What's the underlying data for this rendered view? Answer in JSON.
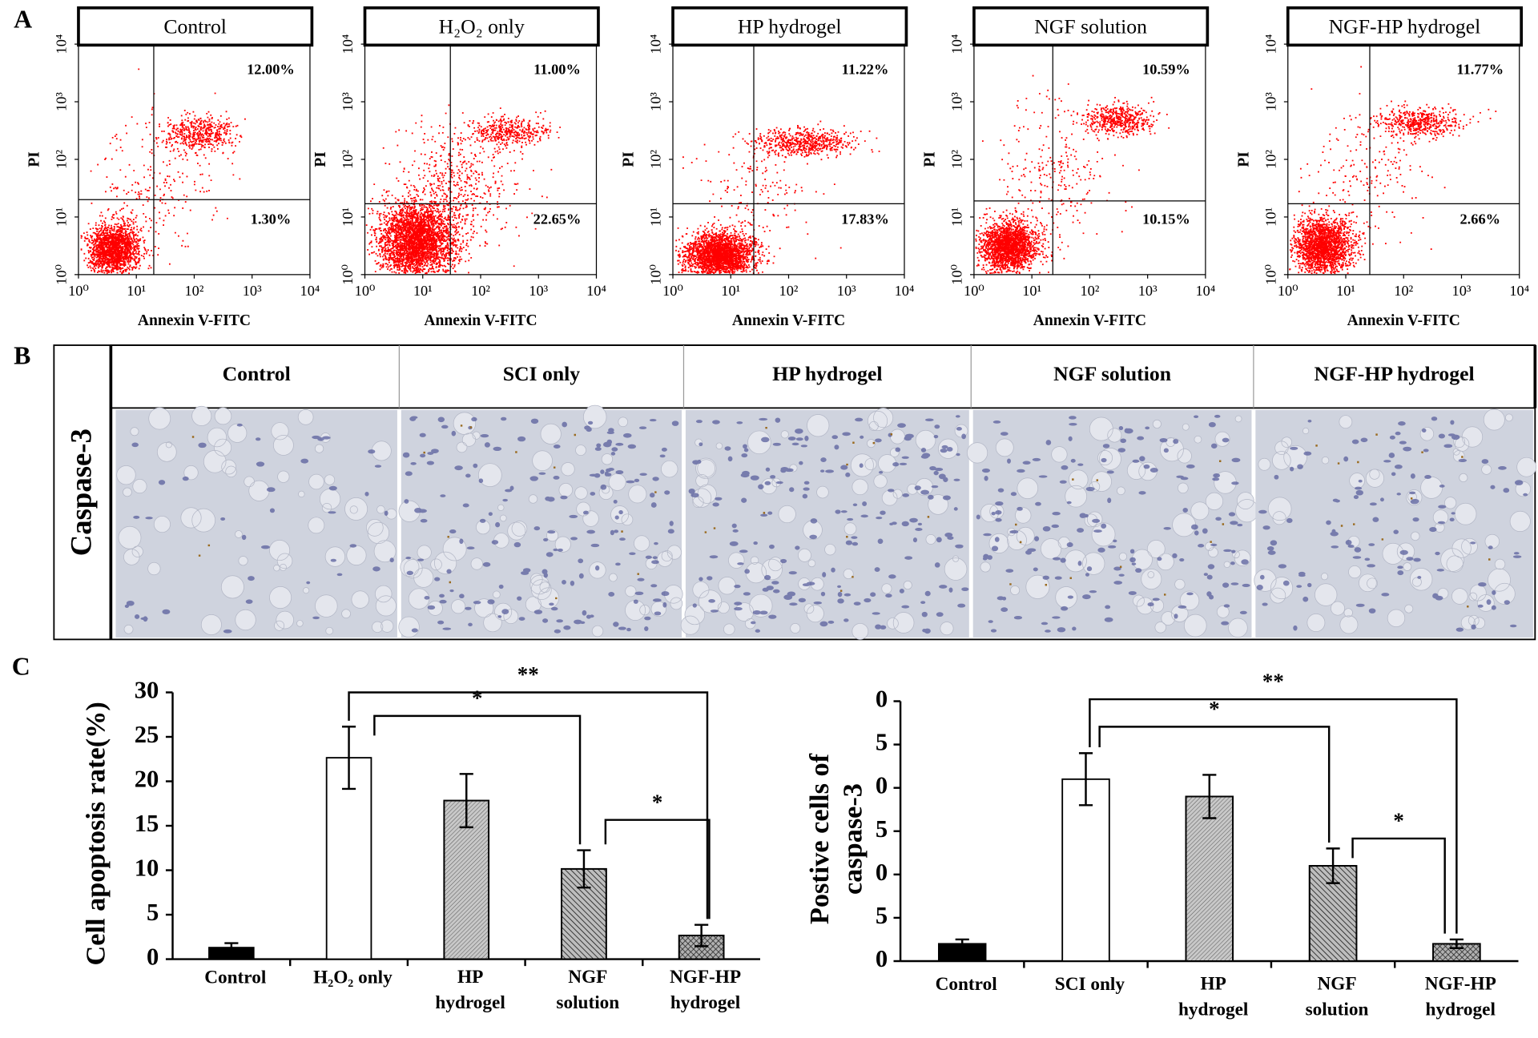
{
  "panel_labels": [
    "A",
    "B",
    "C"
  ],
  "chart_data": [
    {
      "type": "scatter",
      "title": "Control",
      "xlabel": "Annexin V-FITC",
      "ylabel": "PI",
      "log_scale": true,
      "color": "#ff0000",
      "xlim": [
        1,
        10000
      ],
      "ylim": [
        1,
        10000
      ],
      "xticks": [
        {
          "value": 1,
          "label": "10⁰"
        },
        {
          "value": 10,
          "label": "10¹"
        },
        {
          "value": 100,
          "label": "10²"
        },
        {
          "value": 1000,
          "label": "10³"
        },
        {
          "value": 10000,
          "label": "10⁴"
        }
      ],
      "yticks": [
        {
          "value": 1,
          "label": "10⁰"
        },
        {
          "value": 10,
          "label": "10¹"
        },
        {
          "value": 100,
          "label": "10²"
        },
        {
          "value": 1000,
          "label": "10³"
        },
        {
          "value": 10000,
          "label": "10⁴"
        }
      ],
      "gates": {
        "x": 20,
        "y": 20
      },
      "values": [
        12.0,
        1.3
      ],
      "value_labels": [
        "12.00%",
        "1.30%"
      ]
    },
    {
      "type": "scatter",
      "title": "H₂O₂ only",
      "xlabel": "Annexin V-FITC",
      "ylabel": "PI",
      "log_scale": true,
      "color": "#ff0000",
      "xlim": [
        1,
        10000
      ],
      "ylim": [
        1,
        10000
      ],
      "xticks": [
        {
          "value": 1,
          "label": "10⁰"
        },
        {
          "value": 10,
          "label": "10¹"
        },
        {
          "value": 100,
          "label": "10²"
        },
        {
          "value": 1000,
          "label": "10³"
        },
        {
          "value": 10000,
          "label": "10⁴"
        }
      ],
      "yticks": [
        {
          "value": 1,
          "label": "10⁰"
        },
        {
          "value": 10,
          "label": "10¹"
        },
        {
          "value": 100,
          "label": "10²"
        },
        {
          "value": 1000,
          "label": "10³"
        },
        {
          "value": 10000,
          "label": "10⁴"
        }
      ],
      "gates": {
        "x": 30,
        "y": 17
      },
      "values": [
        11.0,
        22.65
      ],
      "value_labels": [
        "11.00%",
        "22.65%"
      ]
    },
    {
      "type": "scatter",
      "title": "HP  hydrogel",
      "xlabel": "Annexin V-FITC",
      "ylabel": "PI",
      "log_scale": true,
      "color": "#ff0000",
      "xlim": [
        1,
        10000
      ],
      "ylim": [
        1,
        10000
      ],
      "xticks": [
        {
          "value": 1,
          "label": "10⁰"
        },
        {
          "value": 10,
          "label": "10¹"
        },
        {
          "value": 100,
          "label": "10²"
        },
        {
          "value": 1000,
          "label": "10³"
        },
        {
          "value": 10000,
          "label": "10⁴"
        }
      ],
      "yticks": [
        {
          "value": 1,
          "label": "10⁰"
        },
        {
          "value": 10,
          "label": "10¹"
        },
        {
          "value": 100,
          "label": "10²"
        },
        {
          "value": 1000,
          "label": "10³"
        },
        {
          "value": 10000,
          "label": "10⁴"
        }
      ],
      "gates": {
        "x": 25,
        "y": 17
      },
      "values": [
        11.22,
        17.83
      ],
      "value_labels": [
        "11.22%",
        "17.83%"
      ]
    },
    {
      "type": "scatter",
      "title": "NGF solution",
      "xlabel": "Annexin V-FITC",
      "ylabel": "PI",
      "log_scale": true,
      "color": "#ff0000",
      "xlim": [
        1,
        10000
      ],
      "ylim": [
        1,
        10000
      ],
      "xticks": [
        {
          "value": 1,
          "label": "10⁰"
        },
        {
          "value": 10,
          "label": "10¹"
        },
        {
          "value": 100,
          "label": "10²"
        },
        {
          "value": 1000,
          "label": "10³"
        },
        {
          "value": 10000,
          "label": "10⁴"
        }
      ],
      "yticks": [
        {
          "value": 1,
          "label": "10⁰"
        },
        {
          "value": 10,
          "label": "10¹"
        },
        {
          "value": 100,
          "label": "10²"
        },
        {
          "value": 1000,
          "label": "10³"
        },
        {
          "value": 10000,
          "label": "10⁴"
        }
      ],
      "gates": {
        "x": 23,
        "y": 19
      },
      "values": [
        10.59,
        10.15
      ],
      "value_labels": [
        "10.59%",
        "10.15%"
      ]
    },
    {
      "type": "scatter",
      "title": "NGF-HP  hydrogel",
      "xlabel": "Annexin V-FITC",
      "ylabel": "PI",
      "log_scale": true,
      "color": "#ff0000",
      "xlim": [
        1,
        10000
      ],
      "ylim": [
        1,
        10000
      ],
      "xticks": [
        {
          "value": 1,
          "label": "10⁰"
        },
        {
          "value": 10,
          "label": "10¹"
        },
        {
          "value": 100,
          "label": "10²"
        },
        {
          "value": 1000,
          "label": "10³"
        },
        {
          "value": 10000,
          "label": "10⁴"
        }
      ],
      "yticks": [
        {
          "value": 1,
          "label": "10⁰"
        },
        {
          "value": 10,
          "label": "10¹"
        },
        {
          "value": 100,
          "label": "10²"
        },
        {
          "value": 1000,
          "label": "10³"
        },
        {
          "value": 10000,
          "label": "10⁴"
        }
      ],
      "gates": {
        "x": 26,
        "y": 17
      },
      "values": [
        11.77,
        2.66
      ],
      "value_labels": [
        "11.77%",
        "2.66%"
      ]
    },
    {
      "type": "bar",
      "ylabel": "Cell apoptosis rate(%)",
      "categories": [
        "Control",
        "H₂O₂ only",
        "HP\nhydrogel",
        "NGF\nsolution",
        "NGF-HP\nhydrogel"
      ],
      "values": [
        1.3,
        22.65,
        17.83,
        10.15,
        2.66
      ],
      "errors": [
        0.5,
        3.5,
        3.0,
        2.1,
        1.2
      ],
      "colors": [
        "#000000",
        "#ffffff",
        "#c8c8c8",
        "#bdbdbd",
        "#b0b0b0"
      ],
      "patterns": [
        "solid",
        "solid",
        "hatch-fine",
        "hatch",
        "crosshatch"
      ],
      "ylim": [
        0,
        30
      ],
      "yticks": [
        0,
        5,
        10,
        15,
        20,
        25,
        30
      ],
      "significance": [
        {
          "from": 1,
          "to": 4,
          "label": "**"
        },
        {
          "from": 1,
          "to": 3,
          "label": "*"
        },
        {
          "from": 3,
          "to": 4,
          "label": "*"
        }
      ]
    },
    {
      "type": "bar",
      "ylabel": "Postive cells of\ncaspase-3",
      "categories": [
        "Control",
        "SCI only",
        "HP\nhydrogel",
        "NGF\nsolution",
        "NGF-HP\nhydrogel"
      ],
      "values": [
        2,
        21,
        19,
        11,
        2
      ],
      "errors": [
        0.5,
        3,
        2.5,
        2,
        0.5
      ],
      "colors": [
        "#000000",
        "#ffffff",
        "#c8c8c8",
        "#bdbdbd",
        "#b0b0b0"
      ],
      "patterns": [
        "solid",
        "solid",
        "hatch-fine",
        "hatch",
        "crosshatch"
      ],
      "ylim": [
        0,
        30
      ],
      "yticks": [
        0,
        5,
        {
          "value": 10,
          "label": "0"
        },
        {
          "value": 15,
          "label": "5"
        },
        {
          "value": 20,
          "label": "0"
        },
        {
          "value": 25,
          "label": "5"
        },
        {
          "value": 30,
          "label": "0"
        }
      ],
      "significance": [
        {
          "from": 1,
          "to": 4,
          "label": "**"
        },
        {
          "from": 1,
          "to": 3,
          "label": "*"
        },
        {
          "from": 3,
          "to": 4,
          "label": "*"
        }
      ]
    }
  ],
  "panel_b": {
    "row_label": "Caspase-3",
    "columns": [
      "Control",
      "SCI only",
      "HP  hydrogel",
      "NGF solution",
      "NGF-HP  hydrogel"
    ]
  }
}
